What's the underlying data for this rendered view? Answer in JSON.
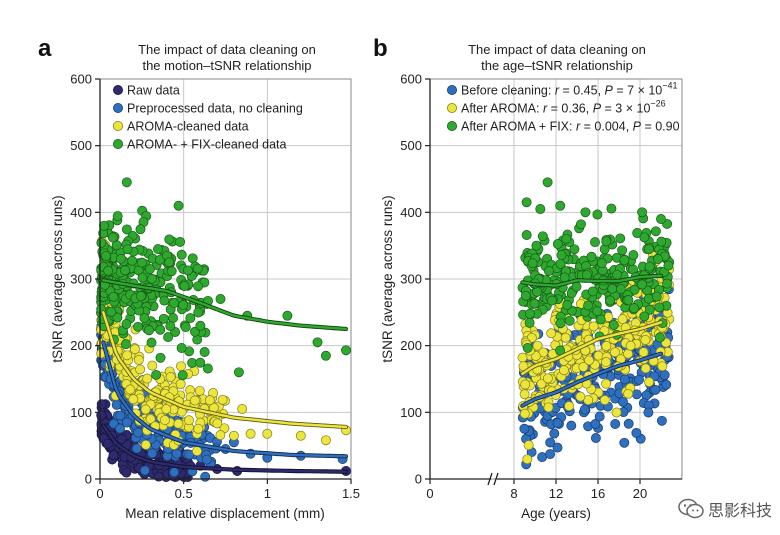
{
  "watermark": {
    "text": "思影科技",
    "icon": "wechat-icon"
  },
  "chart_data": [
    {
      "type": "scatter",
      "panel_label": "a",
      "title": [
        "The impact of data cleaning on",
        "the motion–tSNR relationship"
      ],
      "xlabel": "Mean relative displacement (mm)",
      "ylabel": "tSNR (average across runs)",
      "xlim": [
        0,
        1.5
      ],
      "ylim": [
        0,
        600
      ],
      "xticks": [
        0,
        0.5,
        1,
        1.5
      ],
      "xtick_labels": [
        "0",
        "0.5",
        "1",
        "1.5"
      ],
      "yticks": [
        0,
        100,
        200,
        300,
        400,
        500,
        600
      ],
      "ytick_labels": [
        "0",
        "100",
        "200",
        "300",
        "400",
        "500",
        "600"
      ],
      "grid": true,
      "legend_position": "top-left",
      "series": [
        {
          "name": "Raw data",
          "color": "#2d2a6e",
          "fit": [
            [
              0.02,
              80
            ],
            [
              0.1,
              52
            ],
            [
              0.2,
              35
            ],
            [
              0.3,
              26
            ],
            [
              0.5,
              18
            ],
            [
              0.8,
              14
            ],
            [
              1.15,
              12
            ],
            [
              1.47,
              11
            ]
          ],
          "cloud": {
            "x_range": [
              0.0,
              0.55
            ],
            "y_center": [
              85,
              15
            ],
            "spread": 14
          },
          "outliers": [
            [
              0.6,
              20
            ],
            [
              0.7,
              15
            ],
            [
              0.82,
              12
            ],
            [
              1.47,
              12
            ]
          ]
        },
        {
          "name": "Preprocessed data, no cleaning",
          "color": "#2f6fc0",
          "fit": [
            [
              0.02,
              205
            ],
            [
              0.1,
              130
            ],
            [
              0.2,
              95
            ],
            [
              0.3,
              75
            ],
            [
              0.5,
              55
            ],
            [
              0.8,
              42
            ],
            [
              1.15,
              36
            ],
            [
              1.47,
              34
            ]
          ],
          "cloud": {
            "x_range": [
              0.0,
              0.7
            ],
            "y_center": [
              200,
              45
            ],
            "spread": 28
          },
          "outliers": [
            [
              0.75,
              45
            ],
            [
              0.9,
              38
            ],
            [
              1.0,
              32
            ],
            [
              1.2,
              35
            ],
            [
              1.45,
              30
            ],
            [
              0.8,
              55
            ]
          ]
        },
        {
          "name": "AROMA-cleaned data",
          "color": "#ebe53c",
          "fit": [
            [
              0.02,
              250
            ],
            [
              0.1,
              185
            ],
            [
              0.2,
              150
            ],
            [
              0.3,
              130
            ],
            [
              0.5,
              108
            ],
            [
              0.8,
              92
            ],
            [
              1.15,
              83
            ],
            [
              1.47,
              78
            ]
          ],
          "cloud": {
            "x_range": [
              0.0,
              0.75
            ],
            "y_center": [
              245,
              95
            ],
            "spread": 35
          },
          "outliers": [
            [
              0.8,
              65
            ],
            [
              0.9,
              68
            ],
            [
              1.0,
              68
            ],
            [
              1.2,
              65
            ],
            [
              1.35,
              58
            ],
            [
              1.47,
              73
            ],
            [
              0.85,
              105
            ]
          ]
        },
        {
          "name": "AROMA- + FIX-cleaned data",
          "color": "#2ea82e",
          "fit": [
            [
              0.02,
              298
            ],
            [
              0.2,
              290
            ],
            [
              0.4,
              282
            ],
            [
              0.6,
              264
            ],
            [
              0.8,
              245
            ],
            [
              1.0,
              236
            ],
            [
              1.2,
              230
            ],
            [
              1.47,
              225
            ]
          ],
          "cloud": {
            "x_range": [
              0.0,
              0.65
            ],
            "y_center": [
              310,
              290
            ],
            "spread": 45
          },
          "outliers": [
            [
              0.16,
              445
            ],
            [
              0.47,
              410
            ],
            [
              0.72,
              270
            ],
            [
              0.88,
              245
            ],
            [
              1.12,
              245
            ],
            [
              1.3,
              205
            ],
            [
              1.35,
              185
            ],
            [
              1.47,
              193
            ],
            [
              0.83,
              160
            ],
            [
              0.6,
              230
            ]
          ]
        }
      ]
    },
    {
      "type": "scatter",
      "panel_label": "b",
      "title": [
        "The impact of data cleaning on",
        "the age–tSNR relationship"
      ],
      "xlabel": "Age (years)",
      "ylabel": "tSNR (average across runs)",
      "xlim": [
        0,
        24
      ],
      "axis_break_at": 6,
      "ylim": [
        0,
        600
      ],
      "xticks": [
        0,
        8,
        12,
        16,
        20
      ],
      "xtick_labels": [
        "0",
        "8",
        "12",
        "16",
        "20"
      ],
      "yticks": [
        0,
        100,
        200,
        300,
        400,
        500,
        600
      ],
      "ytick_labels": [
        "0",
        "100",
        "200",
        "300",
        "400",
        "500",
        "600"
      ],
      "grid": true,
      "legend_position": "top-left",
      "series": [
        {
          "name": "Before cleaning",
          "stat_r": "0.45",
          "stat_p_base": "7 × 10",
          "stat_p_exp": "−41",
          "color": "#2f6fc0",
          "fit": [
            [
              8.8,
              110
            ],
            [
              10,
              120
            ],
            [
              12,
              130
            ],
            [
              14,
              145
            ],
            [
              16,
              158
            ],
            [
              18,
              170
            ],
            [
              20,
              178
            ],
            [
              22,
              188
            ]
          ],
          "cloud": {
            "x_range": [
              8.8,
              22.8
            ],
            "spread": 45
          }
        },
        {
          "name": "After AROMA",
          "stat_r": "0.36",
          "stat_p_base": "3 × 10",
          "stat_p_exp": "−26",
          "color": "#ebe53c",
          "fit": [
            [
              8.8,
              158
            ],
            [
              10,
              170
            ],
            [
              12,
              180
            ],
            [
              14,
              195
            ],
            [
              16,
              210
            ],
            [
              18,
              218
            ],
            [
              20,
              225
            ],
            [
              22,
              235
            ]
          ],
          "cloud": {
            "x_range": [
              8.8,
              22.8
            ],
            "spread": 40
          }
        },
        {
          "name": "After AROMA + FIX",
          "stat_r": "0.004",
          "stat_p": "0.90",
          "color": "#2ea82e",
          "fit": [
            [
              8.8,
              295
            ],
            [
              10,
              292
            ],
            [
              12,
              290
            ],
            [
              14,
              298
            ],
            [
              16,
              297
            ],
            [
              18,
              297
            ],
            [
              20,
              303
            ],
            [
              22,
              305
            ]
          ],
          "cloud": {
            "x_range": [
              8.8,
              22.8
            ],
            "spread": 40
          },
          "outliers": [
            [
              11.2,
              445
            ],
            [
              9.2,
              415
            ],
            [
              10.5,
              405
            ],
            [
              12.4,
              410
            ],
            [
              14.8,
              400
            ],
            [
              20.2,
              400
            ],
            [
              22.0,
              390
            ]
          ]
        }
      ]
    }
  ]
}
